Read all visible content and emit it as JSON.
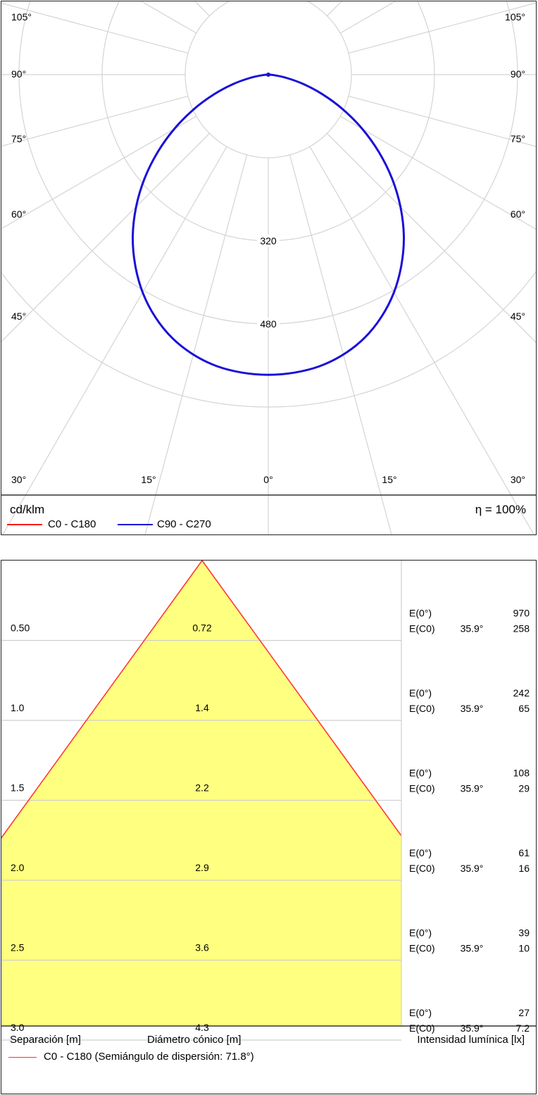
{
  "polar": {
    "unit_label": "cd/klm",
    "efficiency_label": "η = 100%",
    "legend": [
      {
        "label": "C0 - C180",
        "color": "#ff1a1a"
      },
      {
        "label": "C90 - C270",
        "color": "#1a10d8"
      }
    ],
    "angle_labels_left": [
      "105°",
      "90°",
      "75°",
      "60°",
      "45°",
      "30°"
    ],
    "angle_labels_right": [
      "105°",
      "90°",
      "75°",
      "60°",
      "45°",
      "30°"
    ],
    "angle_labels_bottom": [
      "15°",
      "0°",
      "15°"
    ],
    "radial_labels": [
      "320",
      "480"
    ]
  },
  "chart_data": [
    {
      "type": "line",
      "subtype": "polar",
      "title": "",
      "unit": "cd/klm",
      "radial_ticks": [
        160,
        320,
        480,
        640
      ],
      "angle_ticks": [
        0,
        15,
        30,
        45,
        60,
        75,
        90,
        105
      ],
      "series": [
        {
          "name": "C90 - C270",
          "color": "#1a10d8",
          "angles": [
            0,
            5,
            10,
            15,
            20,
            25,
            30,
            35,
            40,
            45,
            50,
            55,
            60,
            65,
            70,
            75,
            80,
            85,
            90
          ],
          "values": [
            578,
            576,
            570,
            558,
            540,
            515,
            484,
            447,
            406,
            360,
            311,
            260,
            209,
            159,
            112,
            70,
            35,
            11,
            0
          ]
        }
      ]
    },
    {
      "type": "table",
      "subtype": "cone-diagram",
      "separation_m": [
        0.5,
        1.0,
        1.5,
        2.0,
        2.5,
        3.0
      ],
      "cone_diameter_m": [
        0.72,
        1.4,
        2.2,
        2.9,
        3.6,
        4.3
      ],
      "half_angle_deg": 35.9,
      "e_0_lx": [
        970,
        242,
        108,
        61,
        39,
        27
      ],
      "e_c0_lx": [
        258,
        65,
        29,
        16,
        10,
        7.2
      ]
    }
  ],
  "cone": {
    "rows": [
      {
        "sep": "0.50",
        "diam": "0.72",
        "e0_label": "E(0°)",
        "e0": "970",
        "ec0_label": "E(C0)",
        "angle": "35.9°",
        "ec0": "258"
      },
      {
        "sep": "1.0",
        "diam": "1.4",
        "e0_label": "E(0°)",
        "e0": "242",
        "ec0_label": "E(C0)",
        "angle": "35.9°",
        "ec0": "65"
      },
      {
        "sep": "1.5",
        "diam": "2.2",
        "e0_label": "E(0°)",
        "e0": "108",
        "ec0_label": "E(C0)",
        "angle": "35.9°",
        "ec0": "29"
      },
      {
        "sep": "2.0",
        "diam": "2.9",
        "e0_label": "E(0°)",
        "e0": "61",
        "ec0_label": "E(C0)",
        "angle": "35.9°",
        "ec0": "16"
      },
      {
        "sep": "2.5",
        "diam": "3.6",
        "e0_label": "E(0°)",
        "e0": "39",
        "ec0_label": "E(C0)",
        "angle": "35.9°",
        "ec0": "10"
      },
      {
        "sep": "3.0",
        "diam": "4.3",
        "e0_label": "E(0°)",
        "e0": "27",
        "ec0_label": "E(C0)",
        "angle": "35.9°",
        "ec0": "7.2"
      }
    ],
    "header_separation": "Separación [m]",
    "header_diameter": "Diámetro cónico [m]",
    "header_intensity": "Intensidad lumínica [lx]",
    "legend_label": "C0 - C180 (Semiángulo de dispersión: 71.8°)",
    "legend_color": "#ff3030",
    "fill_color": "#ffff80"
  }
}
